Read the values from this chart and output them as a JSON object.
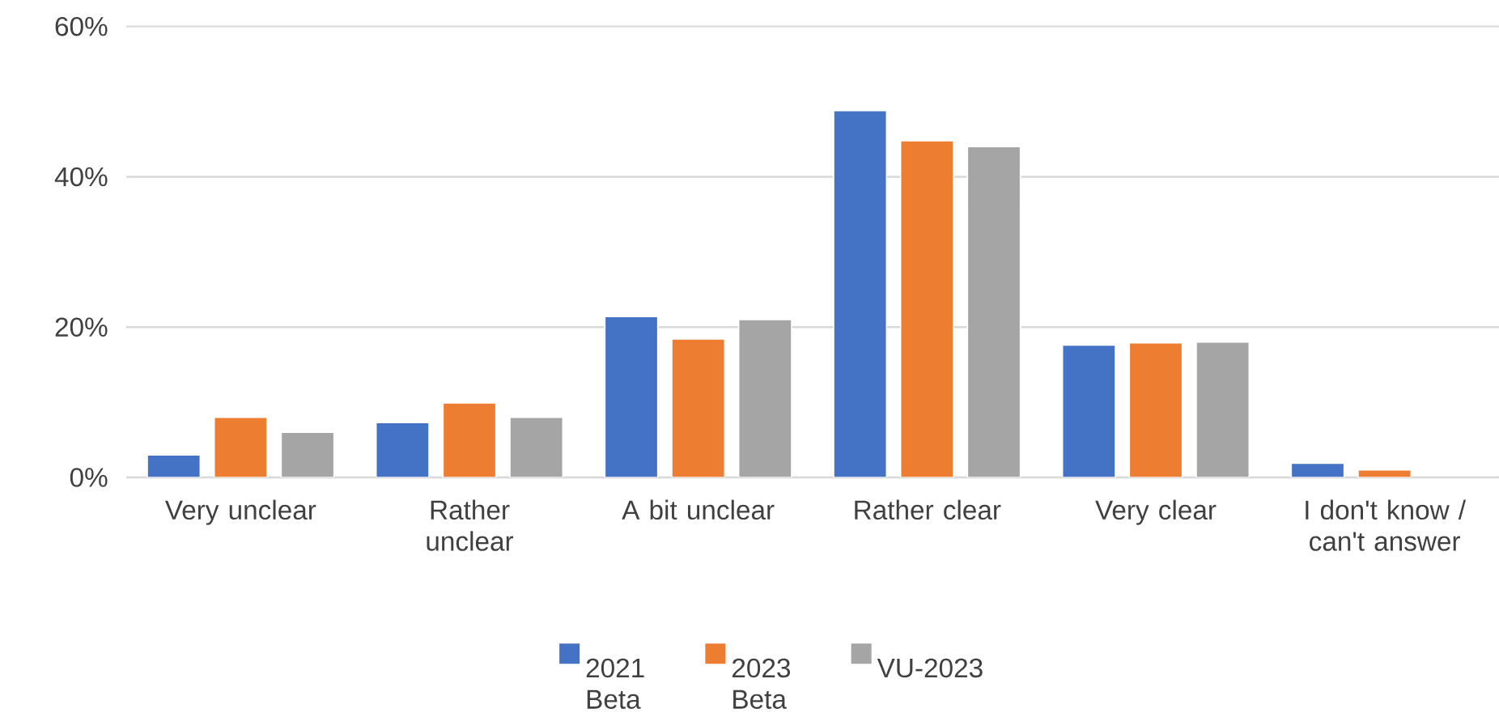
{
  "chart_data": {
    "type": "bar",
    "categories": [
      "Very unclear",
      "Rather unclear",
      "A bit unclear",
      "Rather clear",
      "Very clear",
      "I don't know / can't answer"
    ],
    "series": [
      {
        "name": "2021 Beta",
        "color": "#4472c4",
        "values": [
          3.0,
          7.3,
          21.4,
          48.8,
          17.6,
          1.9
        ]
      },
      {
        "name": "2023 Beta",
        "color": "#ed7d31",
        "values": [
          8.0,
          9.9,
          18.4,
          44.8,
          17.9,
          1.0
        ]
      },
      {
        "name": "VU-2023",
        "color": "#a5a5a5",
        "values": [
          6.0,
          8.0,
          21.0,
          44.0,
          18.0,
          null
        ]
      }
    ],
    "ylim": [
      0,
      60
    ],
    "yticks": [
      {
        "value": 0,
        "label": "0%"
      },
      {
        "value": 20,
        "label": "20%"
      },
      {
        "value": 40,
        "label": "40%"
      },
      {
        "value": 60,
        "label": "60%"
      }
    ],
    "grid": "y",
    "legend": "bottom"
  }
}
